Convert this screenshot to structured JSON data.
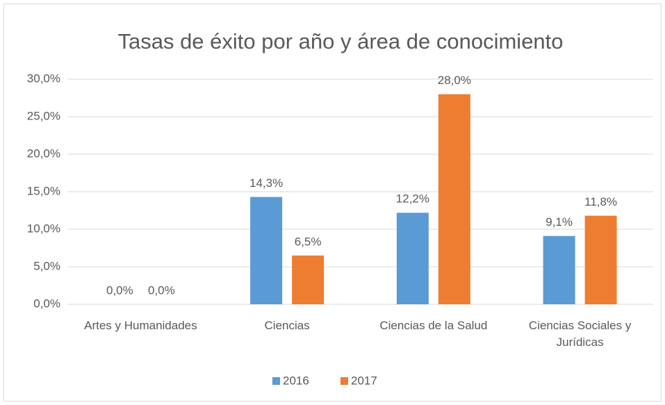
{
  "chart_data": {
    "type": "bar",
    "title": "Tasas de éxito por año y área de conocimiento",
    "categories": [
      "Artes y Humanidades",
      "Ciencias",
      "Ciencias de la Salud",
      "Ciencias Sociales y Jurídicas"
    ],
    "series": [
      {
        "name": "2016",
        "color": "#5b9bd5",
        "values": [
          0,
          14.3,
          12.2,
          9.1
        ],
        "value_labels": [
          "0,0%",
          "14,3%",
          "12,2%",
          "9,1%"
        ]
      },
      {
        "name": "2017",
        "color": "#ed7d31",
        "values": [
          0,
          6.5,
          28.0,
          11.8
        ],
        "value_labels": [
          "0,0%",
          "6,5%",
          "28,0%",
          "11,8%"
        ]
      }
    ],
    "ylim": [
      0,
      30
    ],
    "yticks": [
      {
        "value": 0,
        "label": "0,0%"
      },
      {
        "value": 5,
        "label": "5,0%"
      },
      {
        "value": 10,
        "label": "10,0%"
      },
      {
        "value": 15,
        "label": "15,0%"
      },
      {
        "value": 20,
        "label": "20,0%"
      },
      {
        "value": 25,
        "label": "25,0%"
      },
      {
        "value": 30,
        "label": "30,0%"
      }
    ],
    "grid": true,
    "legend": "bottom"
  }
}
